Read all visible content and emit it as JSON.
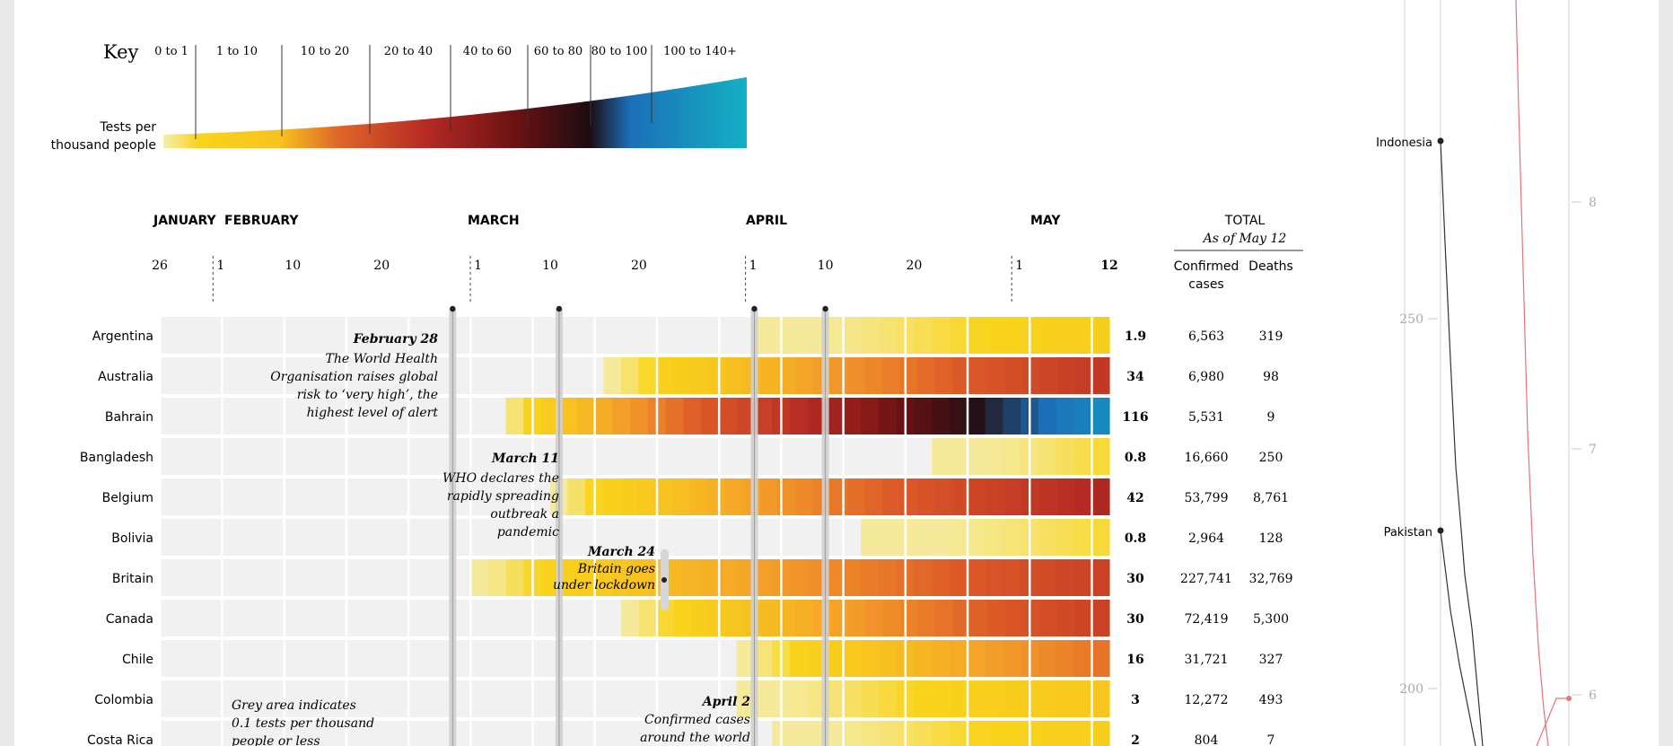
{
  "key": {
    "title": "Key",
    "caption_line1": "Tests per",
    "caption_line2": "thousand people",
    "ranges": [
      "0 to 1",
      "1 to 10",
      "10 to 20",
      "20 to 40",
      "40 to 60",
      "60 to 80",
      "80 to 100",
      "100 to 140+"
    ]
  },
  "months": [
    "JANUARY",
    "FEBRUARY",
    "MARCH",
    "APRIL",
    "MAY"
  ],
  "day_ticks": [
    "26",
    "1",
    "10",
    "20",
    "1",
    "10",
    "20",
    "1",
    "10",
    "20",
    "1",
    "12"
  ],
  "totals": {
    "heading": "TOTAL",
    "subheading": "As of May 12",
    "col_cases_line1": "Confirmed",
    "col_cases_line2": "cases",
    "col_deaths": "Deaths"
  },
  "annotations": {
    "feb28": {
      "title": "February 28",
      "lines": [
        "The World Health",
        "Organisation raises global",
        "risk to ‘very high’, the",
        "highest level of alert"
      ]
    },
    "mar11": {
      "title": "March 11",
      "lines": [
        "WHO declares the",
        "rapidly spreading",
        "outbreak a",
        "pandemic"
      ]
    },
    "mar24": {
      "title": "March 24",
      "lines": [
        "Britain goes",
        "under lockdown"
      ]
    },
    "apr2": {
      "title": "April 2",
      "lines": [
        "Confirmed cases",
        "around the world"
      ]
    },
    "grey": {
      "lines": [
        "Grey area indicates",
        "0.1 tests per thousand",
        "people or less"
      ]
    }
  },
  "chart_data": {
    "type": "heatmap",
    "x_range": [
      "2020-01-26",
      "2020-05-12"
    ],
    "color_scale": {
      "breaks": [
        0,
        1,
        10,
        20,
        40,
        60,
        80,
        100,
        140
      ],
      "labels": [
        "0 to 1",
        "1 to 10",
        "10 to 20",
        "20 to 40",
        "40 to 60",
        "60 to 80",
        "80 to 100",
        "100 to 140+"
      ],
      "colors": [
        "#f4eeb3",
        "#f9d41c",
        "#f39a2a",
        "#dd5a28",
        "#b52a24",
        "#6e1214",
        "#241015",
        "#1c6fb8",
        "#12b1c4"
      ],
      "grey_below": 0.1,
      "grey_color": "#f1f1f1"
    },
    "rows": [
      {
        "country": "Argentina",
        "latest_tests_per_thousand": "1.9",
        "confirmed_cases": "6,563",
        "deaths": "319",
        "start": "2020-04-02",
        "end_value": 1.9
      },
      {
        "country": "Australia",
        "latest_tests_per_thousand": "34",
        "confirmed_cases": "6,980",
        "deaths": "98",
        "start": "2020-03-16",
        "end_value": 34
      },
      {
        "country": "Bahrain",
        "latest_tests_per_thousand": "116",
        "confirmed_cases": "5,531",
        "deaths": "9",
        "start": "2020-03-05",
        "end_value": 116
      },
      {
        "country": "Bangladesh",
        "latest_tests_per_thousand": "0.8",
        "confirmed_cases": "16,660",
        "deaths": "250",
        "start": "2020-04-22",
        "end_value": 0.8
      },
      {
        "country": "Belgium",
        "latest_tests_per_thousand": "42",
        "confirmed_cases": "53,799",
        "deaths": "8,761",
        "start": "2020-03-10",
        "end_value": 42
      },
      {
        "country": "Bolivia",
        "latest_tests_per_thousand": "0.8",
        "confirmed_cases": "2,964",
        "deaths": "128",
        "start": "2020-04-14",
        "end_value": 0.8
      },
      {
        "country": "Britain",
        "latest_tests_per_thousand": "30",
        "confirmed_cases": "227,741",
        "deaths": "32,769",
        "start": "2020-03-01",
        "end_value": 30
      },
      {
        "country": "Canada",
        "latest_tests_per_thousand": "30",
        "confirmed_cases": "72,419",
        "deaths": "5,300",
        "start": "2020-03-18",
        "end_value": 30
      },
      {
        "country": "Chile",
        "latest_tests_per_thousand": "16",
        "confirmed_cases": "31,721",
        "deaths": "327",
        "start": "2020-03-31",
        "end_value": 16
      },
      {
        "country": "Colombia",
        "latest_tests_per_thousand": "3",
        "confirmed_cases": "12,272",
        "deaths": "493",
        "start": "2020-03-31",
        "end_value": 3
      },
      {
        "country": "Costa Rica",
        "latest_tests_per_thousand": "2",
        "confirmed_cases": "804",
        "deaths": "7",
        "start": "2020-04-04",
        "end_value": 2
      }
    ]
  },
  "side_chart": {
    "y_left_ticks": [
      "250",
      "200"
    ],
    "y_right_ticks": [
      "8",
      "7",
      "6"
    ],
    "labels": [
      "Indonesia",
      "Pakistan"
    ]
  }
}
